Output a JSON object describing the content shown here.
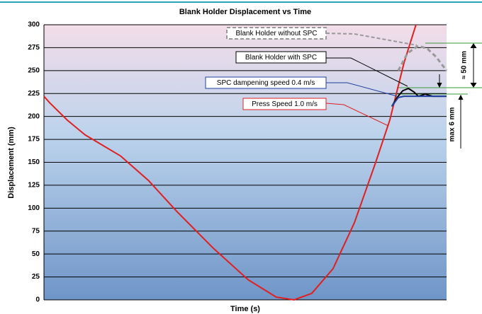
{
  "chart_data": {
    "type": "line",
    "title": "Blank Holder Displacement vs Time",
    "xlabel": "Time (s)",
    "ylabel": "Displacement (mm)",
    "ylim": [
      0,
      300
    ],
    "yticks": [
      0,
      25,
      50,
      75,
      100,
      125,
      150,
      175,
      200,
      225,
      250,
      275,
      300
    ],
    "xlim": [
      0,
      100
    ],
    "grid": true,
    "series": [
      {
        "name": "Press Speed 1.0 m/s",
        "color": "#e02020",
        "x": [
          0,
          1.4,
          5.8,
          10.2,
          19,
          26,
          33.1,
          41.9,
          50.7,
          57.7,
          62.1,
          66.5,
          71.8,
          77.1,
          82.4,
          85.9,
          89.4,
          92.4
        ],
        "values": [
          222,
          215,
          196,
          180,
          157,
          130,
          96,
          57,
          22,
          3,
          0,
          7,
          34,
          84,
          150,
          196,
          258,
          300
        ]
      },
      {
        "name": "Blank Holder with SPC",
        "color": "#000000",
        "x": [
          86.4,
          87.7,
          89.1,
          90.5,
          91.9,
          93,
          94.7,
          96.5,
          100
        ],
        "values": [
          211,
          220.6,
          228,
          230.6,
          226.7,
          222,
          224.4,
          222,
          222
        ]
      },
      {
        "name": "SPC dampening speed 0.4 m/s",
        "color": "#1f3f9f",
        "x": [
          86.4,
          88,
          89.4,
          100
        ],
        "values": [
          211,
          220.6,
          222,
          222
        ]
      },
      {
        "name": "Blank Holder without SPC",
        "color": "#999999",
        "dashed": true,
        "x": [
          88,
          90.3,
          93,
          95.2,
          97.4,
          100
        ],
        "values": [
          250,
          269,
          277,
          274,
          265,
          250
        ]
      }
    ],
    "annotations": [
      "≈ 50 mm",
      "max 6 mm"
    ]
  }
}
